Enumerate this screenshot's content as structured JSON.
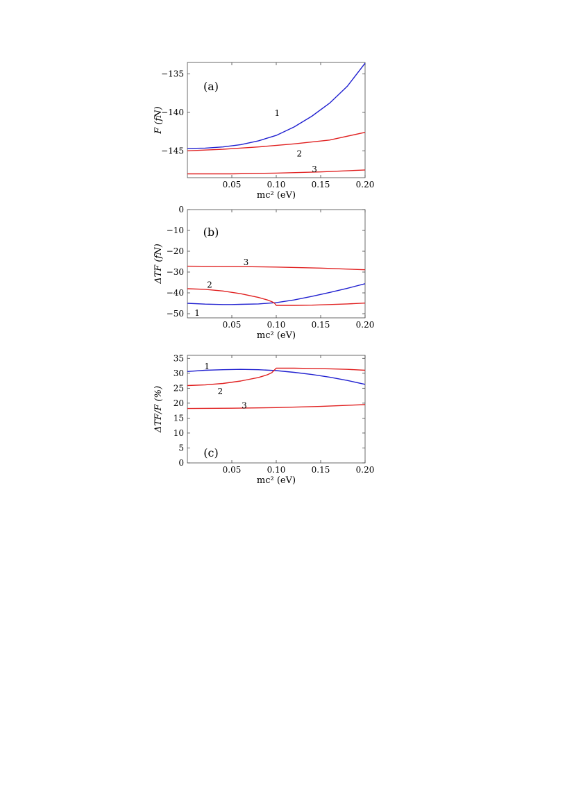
{
  "chart_data": [
    {
      "panel": "(a)",
      "type": "line",
      "xlabel": "mc² (eV)",
      "ylabel": "F (fN)",
      "xlim": [
        0.0,
        0.2
      ],
      "ylim": [
        -148.5,
        -133.5
      ],
      "xticks": [
        0.05,
        0.1,
        0.15,
        0.2
      ],
      "xtick_labels": [
        "0.05",
        "0.10",
        "0.15",
        "0.20"
      ],
      "yticks": [
        -135,
        -140,
        -145
      ],
      "ytick_labels": [
        "−135",
        "−140",
        "−145"
      ],
      "grid": false,
      "series": [
        {
          "name": "1",
          "color": "#2020d0",
          "x": [
            0,
            0.02,
            0.04,
            0.06,
            0.08,
            0.1,
            0.12,
            0.14,
            0.16,
            0.18,
            0.2
          ],
          "y": [
            -144.7,
            -144.65,
            -144.5,
            -144.2,
            -143.7,
            -143.0,
            -141.9,
            -140.5,
            -138.8,
            -136.6,
            -133.6
          ]
        },
        {
          "name": "2",
          "color": "#e02020",
          "x": [
            0,
            0.04,
            0.08,
            0.12,
            0.16,
            0.2
          ],
          "y": [
            -145.0,
            -144.8,
            -144.5,
            -144.1,
            -143.6,
            -142.6
          ]
        },
        {
          "name": "3",
          "color": "#e02020",
          "x": [
            0,
            0.05,
            0.1,
            0.15,
            0.2
          ],
          "y": [
            -148.0,
            -148.0,
            -147.9,
            -147.75,
            -147.5
          ]
        }
      ],
      "curve_labels": [
        {
          "text": "1",
          "x": 0.101,
          "y": -140.1
        },
        {
          "text": "2",
          "x": 0.126,
          "y": -145.4
        },
        {
          "text": "3",
          "x": 0.143,
          "y": -147.4
        }
      ]
    },
    {
      "panel": "(b)",
      "type": "line",
      "xlabel": "mc² (eV)",
      "ylabel": "ΔTF (fN)",
      "xlim": [
        0.0,
        0.2
      ],
      "ylim": [
        -52,
        0
      ],
      "xticks": [
        0.05,
        0.1,
        0.15,
        0.2
      ],
      "xtick_labels": [
        "0.05",
        "0.10",
        "0.15",
        "0.20"
      ],
      "yticks": [
        0,
        -10,
        -20,
        -30,
        -40,
        -50
      ],
      "ytick_labels": [
        "0",
        "−10",
        "−20",
        "−30",
        "−40",
        "−50"
      ],
      "grid": false,
      "series": [
        {
          "name": "1",
          "color": "#2020d0",
          "x": [
            0,
            0.02,
            0.04,
            0.05,
            0.06,
            0.08,
            0.1,
            0.12,
            0.14,
            0.16,
            0.18,
            0.2
          ],
          "y": [
            -45.0,
            -45.4,
            -45.6,
            -45.6,
            -45.5,
            -45.3,
            -44.7,
            -43.4,
            -41.7,
            -39.8,
            -37.8,
            -35.6
          ]
        },
        {
          "name": "2",
          "color": "#e02020",
          "x": [
            0,
            0.02,
            0.04,
            0.06,
            0.08,
            0.09,
            0.095,
            0.098,
            0.1,
            0.12,
            0.14,
            0.16,
            0.18,
            0.2
          ],
          "y": [
            -38.0,
            -38.3,
            -39.1,
            -40.4,
            -42.2,
            -43.4,
            -44.2,
            -44.9,
            -46.0,
            -46.0,
            -45.9,
            -45.6,
            -45.3,
            -44.9
          ]
        },
        {
          "name": "3",
          "color": "#e02020",
          "x": [
            0,
            0.05,
            0.1,
            0.15,
            0.2
          ],
          "y": [
            -27.2,
            -27.3,
            -27.6,
            -28.1,
            -28.9
          ]
        }
      ],
      "curve_labels": [
        {
          "text": "1",
          "x": 0.011,
          "y": -49.7
        },
        {
          "text": "2",
          "x": 0.025,
          "y": -36.2
        },
        {
          "text": "3",
          "x": 0.066,
          "y": -25.3
        }
      ]
    },
    {
      "panel": "(c)",
      "type": "line",
      "xlabel": "mc² (eV)",
      "ylabel": "ΔTF/F (%)",
      "xlim": [
        0.0,
        0.2
      ],
      "ylim": [
        0,
        36
      ],
      "xticks": [
        0.05,
        0.1,
        0.15,
        0.2
      ],
      "xtick_labels": [
        "0.05",
        "0.10",
        "0.15",
        "0.20"
      ],
      "yticks": [
        0,
        5,
        10,
        15,
        20,
        25,
        30,
        35
      ],
      "ytick_labels": [
        "0",
        "5",
        "10",
        "15",
        "20",
        "25",
        "30",
        "35"
      ],
      "grid": false,
      "series": [
        {
          "name": "1",
          "color": "#2020d0",
          "x": [
            0,
            0.02,
            0.04,
            0.06,
            0.08,
            0.1,
            0.12,
            0.14,
            0.16,
            0.18,
            0.2
          ],
          "y": [
            30.6,
            31.0,
            31.2,
            31.3,
            31.2,
            30.9,
            30.3,
            29.6,
            28.7,
            27.6,
            26.3
          ]
        },
        {
          "name": "2",
          "color": "#e02020",
          "x": [
            0,
            0.02,
            0.04,
            0.06,
            0.08,
            0.09,
            0.095,
            0.1,
            0.12,
            0.14,
            0.16,
            0.18,
            0.2
          ],
          "y": [
            25.9,
            26.1,
            26.6,
            27.4,
            28.6,
            29.5,
            30.2,
            31.7,
            31.7,
            31.6,
            31.5,
            31.3,
            31.0
          ]
        },
        {
          "name": "3",
          "color": "#e02020",
          "x": [
            0,
            0.05,
            0.1,
            0.15,
            0.2
          ],
          "y": [
            18.2,
            18.3,
            18.5,
            18.9,
            19.5
          ]
        }
      ],
      "curve_labels": [
        {
          "text": "1",
          "x": 0.022,
          "y": 32.3
        },
        {
          "text": "2",
          "x": 0.037,
          "y": 23.9
        },
        {
          "text": "3",
          "x": 0.064,
          "y": 19.2
        }
      ]
    }
  ]
}
